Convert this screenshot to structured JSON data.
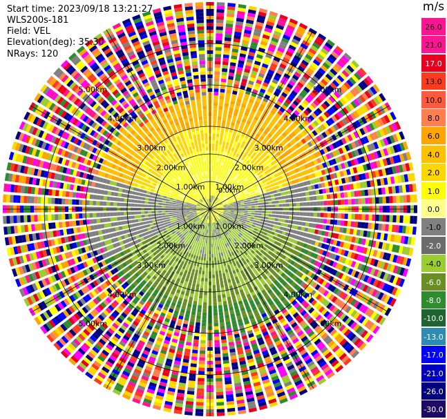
{
  "header": {
    "start_time": "Start time: 2023/09/18 13:21:27",
    "instrument": "WLS200s-181",
    "field": "Field: VEL",
    "elevation": "Elevation(deg): 35.30",
    "nrays": "NRays: 120"
  },
  "colorbar": {
    "title": "m/s",
    "labels": [
      "26.0",
      "21.0",
      "17.0",
      "13.0",
      "10.0",
      "8.0",
      "6.0",
      "4.0",
      "2.0",
      "1.0",
      "0.0",
      "-1.0",
      "-2.0",
      "-4.0",
      "-6.0",
      "-8.0",
      "-10.0",
      "-13.0",
      "-17.0",
      "-21.0",
      "-26.0",
      "-30.0"
    ],
    "colors": [
      "#ff1493",
      "#ff1493",
      "#e8001e",
      "#ff3b1e",
      "#ff5a3c",
      "#ff7f50",
      "#ffa500",
      "#ffc000",
      "#ffd700",
      "#ffff00",
      "#ffff8c",
      "#808080",
      "#6b6b6b",
      "#9acd32",
      "#6b8e23",
      "#2e8b2e",
      "#1e6432",
      "#2e8bb4",
      "#0000ff",
      "#0000c0",
      "#000080",
      "#1e0a64"
    ]
  },
  "map": {
    "ring_labels": [
      "1.00km",
      "2.00km",
      "3.00km",
      "4.00km",
      "5.00km"
    ],
    "center_label": "0.0km",
    "noise_palette": [
      "#ff1493",
      "#0000ff",
      "#ffff00",
      "#ff3b1e",
      "#000080",
      "#2e8b2e",
      "#ffa500",
      "#808080",
      "#ff7f50",
      "#9acd32",
      "#ff00ff",
      "#00008b",
      "#e8001e",
      "#ffd700"
    ]
  }
}
